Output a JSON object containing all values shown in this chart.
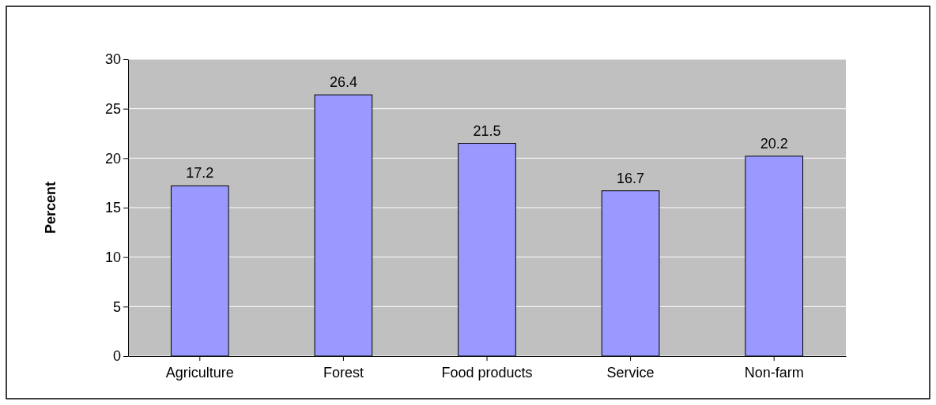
{
  "chart_data": {
    "type": "bar",
    "ylabel": "Percent",
    "categories": [
      "Agriculture",
      "Forest",
      "Food products",
      "Service",
      "Non-farm"
    ],
    "values": [
      17.2,
      26.4,
      21.5,
      16.7,
      20.2
    ],
    "color": "#9999ff",
    "ylim": [
      0,
      30
    ],
    "yticks": [
      0,
      5,
      10,
      15,
      20,
      25,
      30
    ],
    "grid": "y",
    "data_labels": true
  }
}
